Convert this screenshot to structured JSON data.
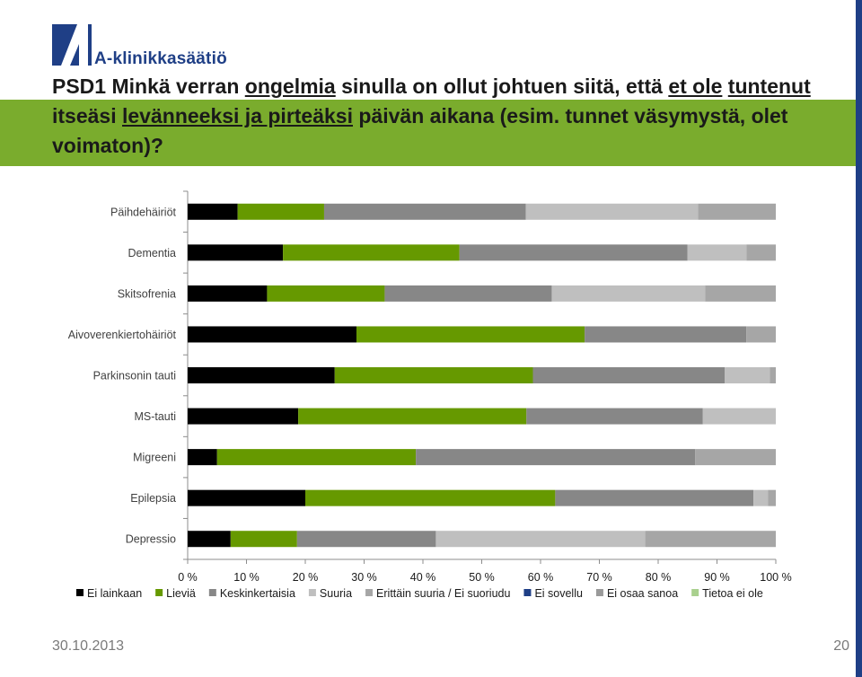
{
  "logo": {
    "text": "A-klinikkasäätiö",
    "icon": "a-klinikka-logo-icon"
  },
  "title_parts": [
    {
      "text": "PSD1 Minkä verran ",
      "underline": false
    },
    {
      "text": "ongelmia",
      "underline": true
    },
    {
      "text": " sinulla on ollut johtuen siitä, että ",
      "underline": false
    },
    {
      "text": "et ole",
      "underline": true
    },
    {
      "text": " ",
      "underline": false
    },
    {
      "text": "tuntenut",
      "underline": true
    },
    {
      "text": " itseäsi ",
      "underline": false
    },
    {
      "text": "levänneeksi ja pirteäksi",
      "underline": true
    },
    {
      "text": " päivän aikana (esim. tunnet väsymystä, olet voimaton)?",
      "underline": false
    }
  ],
  "footer": {
    "date": "30.10.2013",
    "page": "20"
  },
  "colors": {
    "band": "#7aac2d",
    "brand": "#1f3f86"
  },
  "chart_data": {
    "type": "bar",
    "orientation": "horizontal",
    "stacked": "percent",
    "categories": [
      "Päihdehäiriöt",
      "Dementia",
      "Skitsofrenia",
      "Aivoverenkiertohäiriöt",
      "Parkinsonin tauti",
      "MS-tauti",
      "Migreeni",
      "Epilepsia",
      "Depressio"
    ],
    "xlim": [
      0,
      100
    ],
    "xticks": [
      "0 %",
      "10 %",
      "20 %",
      "30 %",
      "40 %",
      "50 %",
      "60 %",
      "70 %",
      "80 %",
      "90 %",
      "100 %"
    ],
    "grid": false,
    "legend_position": "bottom",
    "series": [
      {
        "name": "Ei lainkaan",
        "color": "#000000",
        "values": [
          8.5,
          16.2,
          13.5,
          28.7,
          25.0,
          18.8,
          5.0,
          20.0,
          7.3
        ]
      },
      {
        "name": "Lieviä",
        "color": "#669900",
        "values": [
          14.7,
          30.0,
          20.0,
          38.8,
          33.7,
          38.8,
          33.8,
          42.5,
          11.3
        ]
      },
      {
        "name": "Keskinkertaisia",
        "color": "#878787",
        "values": [
          34.3,
          38.8,
          28.4,
          27.5,
          32.6,
          30.0,
          47.5,
          33.7,
          23.6
        ]
      },
      {
        "name": "Suuria",
        "color": "#bfbfbf",
        "values": [
          29.3,
          10.0,
          26.1,
          0,
          7.7,
          12.4,
          0,
          2.5,
          35.6
        ]
      },
      {
        "name": "Erittäin suuria / Ei suoriudu",
        "color": "#a6a6a6",
        "values": [
          13.2,
          5.0,
          12.0,
          5.0,
          1.0,
          0,
          13.7,
          1.3,
          22.2
        ]
      },
      {
        "name": "Ei sovellu",
        "color": "#1f3f86",
        "values": [
          0,
          0,
          0,
          0,
          0,
          0,
          0,
          0,
          0
        ]
      },
      {
        "name": "Ei osaa sanoa",
        "color": "#9a9a9a",
        "values": [
          0,
          0,
          0,
          0,
          0,
          0,
          0,
          0,
          0
        ]
      },
      {
        "name": "Tietoa ei ole",
        "color": "#a9d08e",
        "values": [
          0,
          0,
          0,
          0,
          0,
          0,
          0,
          0,
          0
        ]
      }
    ]
  }
}
